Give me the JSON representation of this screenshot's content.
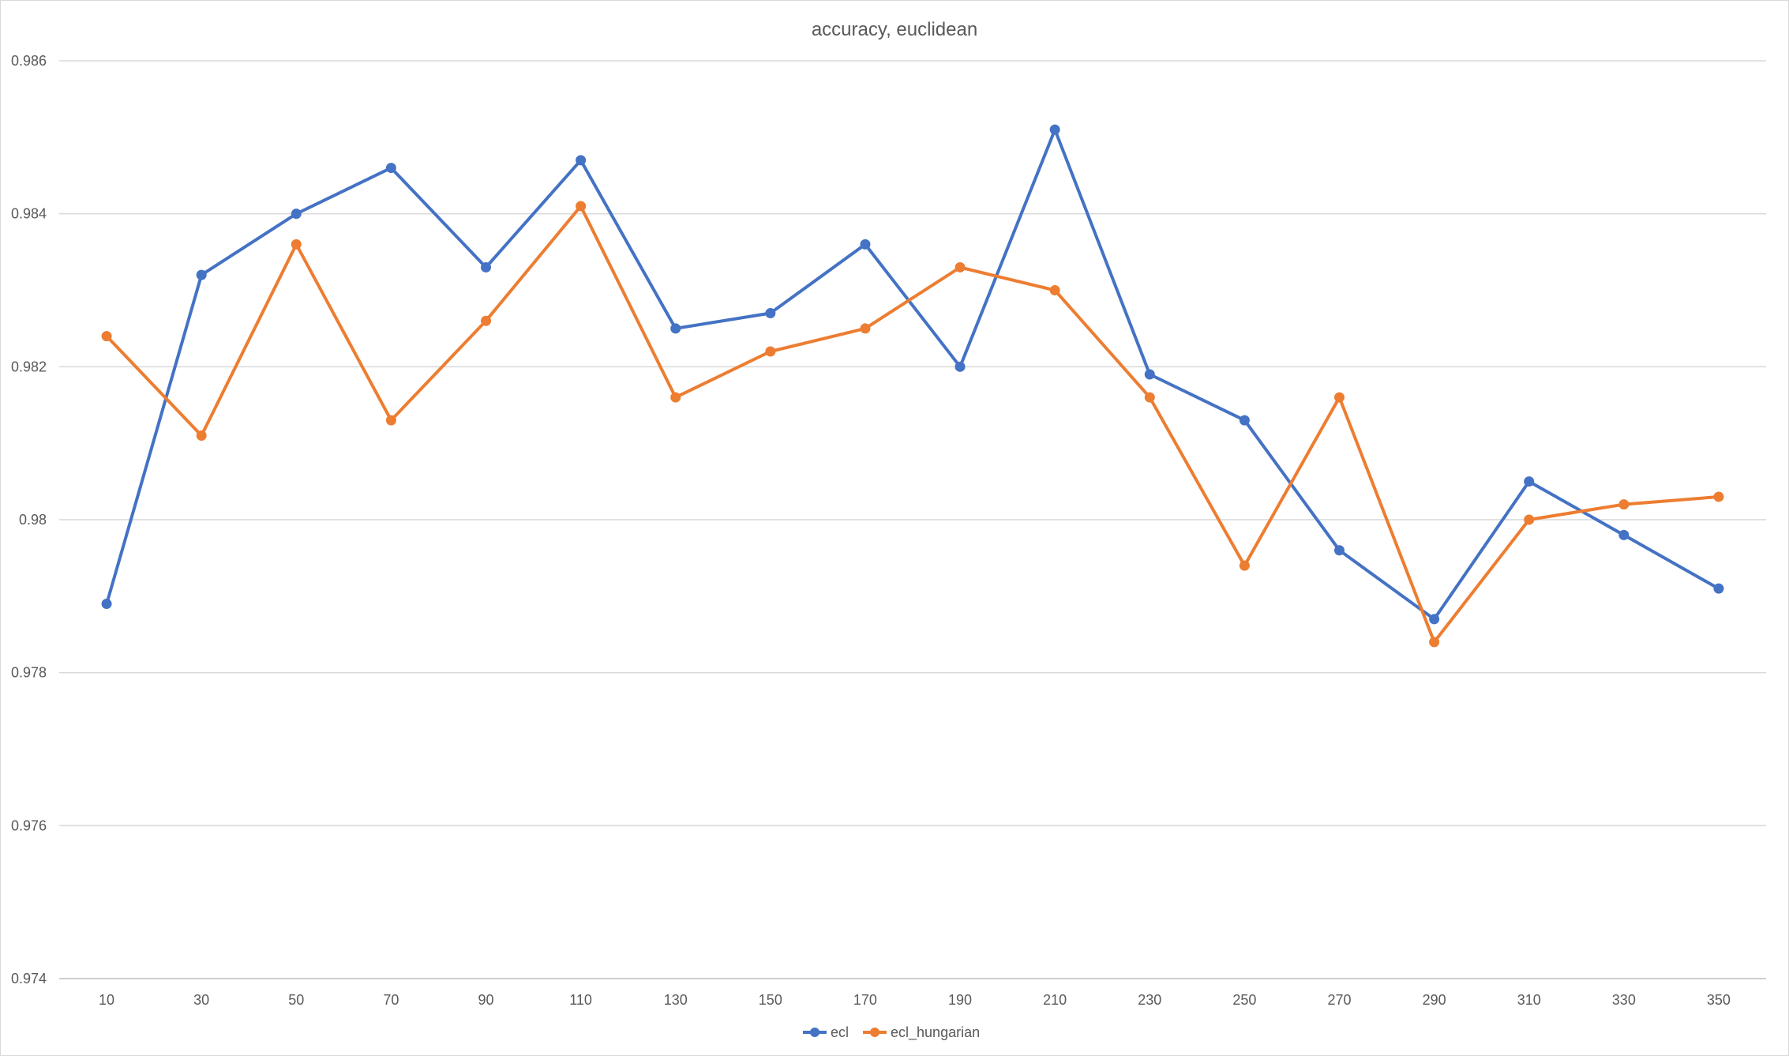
{
  "chart_data": {
    "type": "line",
    "title": "accuracy, euclidean",
    "xlabel": "",
    "ylabel": "",
    "categories": [
      "10",
      "30",
      "50",
      "70",
      "90",
      "110",
      "130",
      "150",
      "170",
      "190",
      "210",
      "230",
      "250",
      "270",
      "290",
      "310",
      "330",
      "350"
    ],
    "ylim": [
      0.974,
      0.986
    ],
    "yticks": [
      0.974,
      0.976,
      0.978,
      0.98,
      0.982,
      0.984,
      0.986
    ],
    "ytick_labels": [
      "0.974",
      "0.976",
      "0.978",
      "0.98",
      "0.982",
      "0.984",
      "0.986"
    ],
    "grid": true,
    "legend_position": "bottom-center",
    "series": [
      {
        "name": "ecl",
        "color": "#4472c4",
        "values": [
          0.9789,
          0.9832,
          0.984,
          0.9846,
          0.9833,
          0.9847,
          0.9825,
          0.9827,
          0.9836,
          0.982,
          0.9851,
          0.9819,
          0.9813,
          0.9796,
          0.9787,
          0.9805,
          0.9798,
          0.9791
        ]
      },
      {
        "name": "ecl_hungarian",
        "color": "#ed7d31",
        "values": [
          0.9824,
          0.9811,
          0.9836,
          0.9813,
          0.9826,
          0.9841,
          0.9816,
          0.9822,
          0.9825,
          0.9833,
          0.983,
          0.9816,
          0.9794,
          0.9816,
          0.9784,
          0.98,
          0.9802,
          0.9803
        ]
      }
    ]
  }
}
